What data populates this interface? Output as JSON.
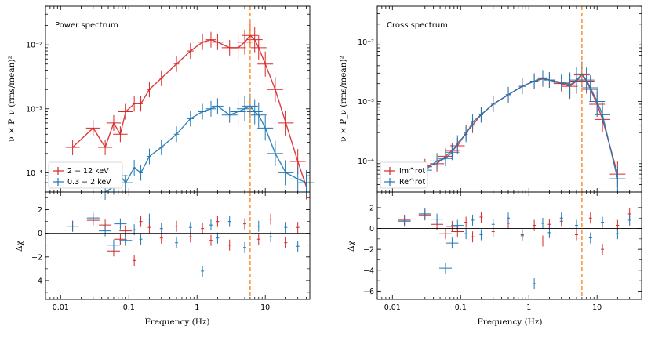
{
  "colors": {
    "red": "#d62728",
    "blue": "#1f77b4",
    "dashed_line": "#ff7f0e"
  },
  "chart_data": [
    {
      "type": "scatter",
      "panel": "left",
      "annotation": "Power spectrum",
      "xlabel": "Frequency (Hz)",
      "xscale": "log",
      "xlim": [
        0.006,
        45
      ],
      "xticks": [
        "0.01",
        "0.1",
        "1",
        "10"
      ],
      "top": {
        "ylabel": "ν × P_ν (rms/mean)²",
        "yscale": "log",
        "ylim": [
          5e-05,
          0.04
        ],
        "yticks": [
          "10⁻⁴",
          "10⁻³",
          "10⁻²"
        ],
        "legend": "lower-left",
        "series": [
          {
            "name": "2 − 12 keV",
            "color": "#d62728",
            "x": [
              0.015,
              0.03,
              0.045,
              0.06,
              0.075,
              0.09,
              0.12,
              0.15,
              0.2,
              0.3,
              0.5,
              0.8,
              1.2,
              1.6,
              2.0,
              3.0,
              4.0,
              5.0,
              6.0,
              7.0,
              8.0,
              10.0,
              14.0,
              20.0,
              30.0,
              40.0
            ],
            "y": [
              0.00025,
              0.0005,
              0.00025,
              0.0006,
              0.0004,
              0.0009,
              0.0012,
              0.0012,
              0.002,
              0.003,
              0.005,
              0.008,
              0.011,
              0.012,
              0.011,
              0.009,
              0.009,
              0.011,
              0.014,
              0.012,
              0.009,
              0.005,
              0.002,
              0.0006,
              0.00015,
              6e-05
            ]
          },
          {
            "name": "0.3 − 2 keV",
            "color": "#1f77b4",
            "x": [
              0.045,
              0.06,
              0.075,
              0.09,
              0.12,
              0.15,
              0.2,
              0.3,
              0.5,
              0.8,
              1.2,
              1.6,
              2.0,
              3.0,
              4.0,
              5.0,
              6.0,
              7.0,
              8.0,
              10.0,
              14.0,
              20.0,
              30.0,
              40.0
            ],
            "y": [
              5e-05,
              6e-05,
              9e-05,
              7e-05,
              0.00012,
              0.0001,
              0.00018,
              0.00025,
              0.0004,
              0.0007,
              0.0009,
              0.001,
              0.0011,
              0.0008,
              0.0009,
              0.001,
              0.0011,
              0.0009,
              0.0008,
              0.0005,
              0.0002,
              0.0001,
              8e-05,
              7e-05
            ]
          }
        ]
      },
      "bottom": {
        "ylabel": "Δχ",
        "ylim": [
          -5.6,
          3.5
        ],
        "yticks": [
          "−4",
          "−2",
          "0",
          "2"
        ],
        "series": [
          {
            "name": "2 − 12 keV",
            "color": "#d62728",
            "x": [
              0.015,
              0.03,
              0.045,
              0.06,
              0.075,
              0.09,
              0.12,
              0.15,
              0.2,
              0.3,
              0.5,
              0.8,
              1.2,
              1.6,
              2.0,
              3.0,
              5.0,
              8.0,
              12.0,
              20.0,
              30.0
            ],
            "y": [
              0.6,
              1.1,
              0.7,
              -1.5,
              -0.5,
              0.2,
              -2.3,
              1.0,
              0.5,
              -0.4,
              0.6,
              -0.3,
              0.4,
              -0.6,
              1.0,
              -1.0,
              0.8,
              -0.5,
              1.2,
              -0.8,
              0.5
            ]
          },
          {
            "name": "0.3 − 2 keV",
            "color": "#1f77b4",
            "x": [
              0.015,
              0.03,
              0.045,
              0.06,
              0.075,
              0.09,
              0.12,
              0.15,
              0.2,
              0.3,
              0.5,
              0.8,
              1.2,
              1.6,
              2.0,
              3.0,
              5.0,
              8.0,
              12.0,
              20.0,
              30.0
            ],
            "y": [
              0.6,
              1.3,
              0.2,
              -1.0,
              0.8,
              -0.6,
              0.3,
              -0.5,
              1.2,
              0.4,
              -0.8,
              0.5,
              -3.2,
              0.7,
              -0.4,
              1.0,
              -1.2,
              0.6,
              -0.3,
              0.5,
              -1.1
            ]
          }
        ]
      },
      "vline_x": 6.0
    },
    {
      "type": "scatter",
      "panel": "right",
      "annotation": "Cross spectrum",
      "xlabel": "Frequency (Hz)",
      "xscale": "log",
      "xlim": [
        0.006,
        45
      ],
      "xticks": [
        "0.01",
        "0.1",
        "1",
        "10"
      ],
      "top": {
        "ylabel": "ν × P_ν (rms/mean)²",
        "yscale": "log",
        "ylim": [
          3e-05,
          0.04
        ],
        "yticks": [
          "10⁻⁴",
          "10⁻³",
          "10⁻²"
        ],
        "legend": "lower-left",
        "series": [
          {
            "name": "Im^rot",
            "color": "#d62728",
            "x": [
              0.03,
              0.045,
              0.06,
              0.075,
              0.09,
              0.12,
              0.15,
              0.2,
              0.3,
              0.5,
              0.8,
              1.2,
              1.6,
              2.0,
              3.0,
              4.0,
              5.0,
              6.0,
              7.0,
              8.0,
              10.0,
              12.0,
              15.0,
              20.0
            ],
            "y": [
              8e-05,
              9e-05,
              0.00012,
              0.00015,
              0.00018,
              0.0003,
              0.0004,
              0.0006,
              0.0009,
              0.0013,
              0.0018,
              0.0022,
              0.0024,
              0.0023,
              0.002,
              0.0018,
              0.0022,
              0.0028,
              0.0022,
              0.0016,
              0.0009,
              0.0005,
              0.0002,
              6e-05
            ]
          },
          {
            "name": "Re^rot",
            "color": "#1f77b4",
            "x": [
              0.03,
              0.045,
              0.06,
              0.075,
              0.09,
              0.12,
              0.15,
              0.2,
              0.3,
              0.5,
              0.8,
              1.2,
              1.6,
              2.0,
              3.0,
              4.0,
              5.0,
              6.0,
              7.0,
              8.0,
              10.0,
              12.0,
              15.0,
              20.0
            ],
            "y": [
              7e-05,
              0.0001,
              0.00011,
              0.00014,
              0.0002,
              0.00028,
              0.00045,
              0.0006,
              0.0009,
              0.0013,
              0.0018,
              0.0022,
              0.0025,
              0.0023,
              0.0021,
              0.0019,
              0.0023,
              0.0029,
              0.0023,
              0.0017,
              0.001,
              0.0006,
              0.0002,
              5e-05
            ]
          }
        ]
      },
      "bottom": {
        "ylabel": "Δχ",
        "ylim": [
          -6.8,
          3.5
        ],
        "yticks": [
          "−6",
          "−4",
          "−2",
          "0",
          "2"
        ],
        "series": [
          {
            "name": "Im^rot",
            "color": "#d62728",
            "x": [
              0.015,
              0.03,
              0.045,
              0.06,
              0.075,
              0.09,
              0.12,
              0.15,
              0.2,
              0.3,
              0.5,
              0.8,
              1.2,
              1.6,
              2.0,
              3.0,
              5.0,
              8.0,
              12.0,
              20.0,
              30.0
            ],
            "y": [
              0.8,
              1.3,
              0.4,
              -0.5,
              0.2,
              -0.3,
              0.6,
              -0.8,
              1.1,
              -0.3,
              0.5,
              -0.6,
              0.3,
              -1.2,
              0.4,
              0.7,
              -0.6,
              1.0,
              -2.0,
              0.3,
              1.4
            ]
          },
          {
            "name": "Re^rot",
            "color": "#1f77b4",
            "x": [
              0.015,
              0.03,
              0.045,
              0.06,
              0.075,
              0.09,
              0.12,
              0.15,
              0.2,
              0.3,
              0.5,
              0.8,
              1.2,
              1.6,
              2.0,
              3.0,
              5.0,
              8.0,
              12.0,
              20.0,
              30.0
            ],
            "y": [
              0.7,
              1.4,
              0.9,
              -3.8,
              -1.4,
              0.3,
              -0.5,
              0.8,
              -0.6,
              0.4,
              1.0,
              -0.7,
              -5.3,
              0.5,
              -0.4,
              1.0,
              0.3,
              -0.9,
              0.6,
              -0.5,
              0.8
            ]
          }
        ]
      },
      "vline_x": 6.0
    }
  ]
}
